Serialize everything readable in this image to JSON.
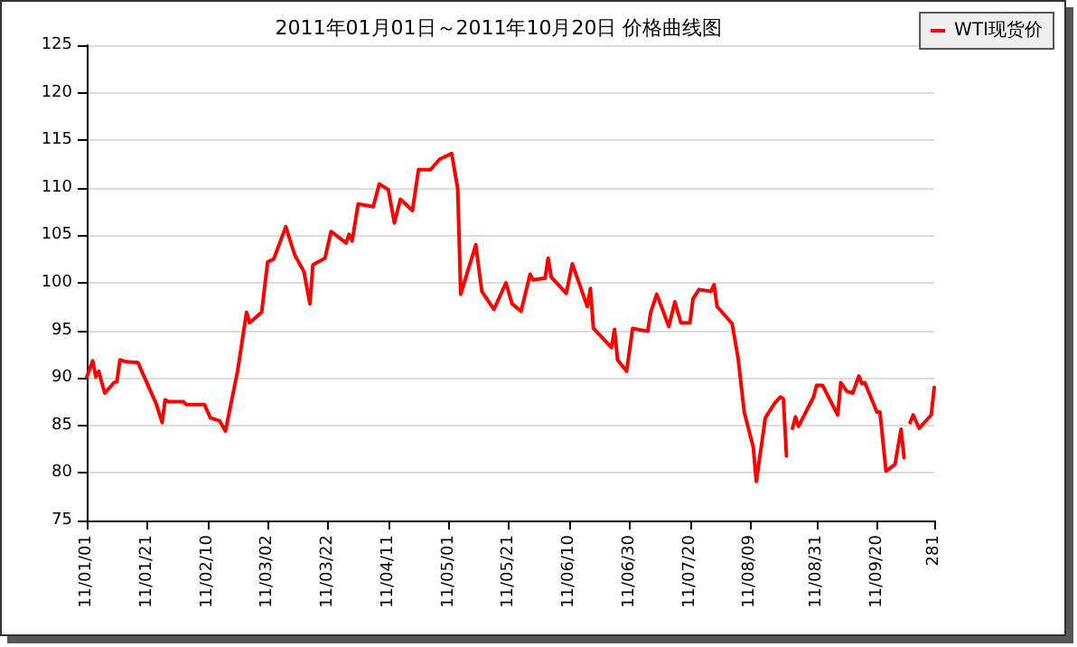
{
  "chart_data": {
    "type": "line",
    "title": "2011年01月01日～2011年10月20日 价格曲线图",
    "x": [
      "2011-01-01",
      "2011-01-03",
      "2011-01-04",
      "2011-01-05",
      "2011-01-06",
      "2011-01-07",
      "2011-01-10",
      "2011-01-11",
      "2011-01-12",
      "2011-01-14",
      "2011-01-18",
      "2011-01-24",
      "2011-01-26",
      "2011-01-27",
      "2011-01-28",
      "2011-02-02",
      "2011-02-03",
      "2011-02-09",
      "2011-02-11",
      "2011-02-14",
      "2011-02-16",
      "2011-02-20",
      "2011-02-23",
      "2011-02-24",
      "2011-02-28",
      "2011-03-02",
      "2011-03-04",
      "2011-03-08",
      "2011-03-11",
      "2011-03-14",
      "2011-03-16",
      "2011-03-17",
      "2011-03-21",
      "2011-03-23",
      "2011-03-28",
      "2011-03-29",
      "2011-03-30",
      "2011-04-01",
      "2011-04-06",
      "2011-04-08",
      "2011-04-11",
      "2011-04-13",
      "2011-04-15",
      "2011-04-19",
      "2011-04-21",
      "2011-04-25",
      "2011-04-28",
      "2011-05-02",
      "2011-05-04",
      "2011-05-05",
      "2011-05-10",
      "2011-05-12",
      "2011-05-16",
      "2011-05-20",
      "2011-05-22",
      "2011-05-25",
      "2011-05-28",
      "2011-05-29",
      "2011-06-02",
      "2011-06-03",
      "2011-06-04",
      "2011-06-09",
      "2011-06-11",
      "2011-06-16",
      "2011-06-17",
      "2011-06-18",
      "2011-06-24",
      "2011-06-25",
      "2011-06-26",
      "2011-06-29",
      "2011-07-01",
      "2011-07-06",
      "2011-07-07",
      "2011-07-09",
      "2011-07-13",
      "2011-07-15",
      "2011-07-17",
      "2011-07-20",
      "2011-07-21",
      "2011-07-23",
      "2011-07-27",
      "2011-07-28",
      "2011-07-29",
      "2011-08-03",
      "2011-08-05",
      "2011-08-07",
      "2011-08-10",
      "2011-08-11",
      "2011-08-14",
      "2011-08-17",
      "2011-08-19",
      "2011-08-20",
      "2011-08-21",
      "2011-08-22",
      "2011-08-23",
      "2011-08-24",
      "2011-08-25",
      "2011-08-30",
      "2011-08-31",
      "2011-09-02",
      "2011-09-07",
      "2011-09-08",
      "2011-09-10",
      "2011-09-12",
      "2011-09-14",
      "2011-09-15",
      "2011-09-16",
      "2011-09-20",
      "2011-09-21",
      "2011-09-23",
      "2011-09-26",
      "2011-09-28",
      "2011-09-29",
      "2011-09-30",
      "2011-10-01",
      "2011-10-02",
      "2011-10-04",
      "2011-10-08",
      "2011-10-09"
    ],
    "series": [
      {
        "name": "WTI现货价",
        "color": "#ff0000",
        "values": [
          90.1,
          91.8,
          90.1,
          90.7,
          89.5,
          88.4,
          89.5,
          89.6,
          91.9,
          91.7,
          91.6,
          87.3,
          85.3,
          87.7,
          87.5,
          87.5,
          87.2,
          87.2,
          85.8,
          85.5,
          84.4,
          90.7,
          96.9,
          95.8,
          96.9,
          102.2,
          102.5,
          105.9,
          102.9,
          101.2,
          97.8,
          101.9,
          102.6,
          105.4,
          104.2,
          105.1,
          104.4,
          108.3,
          108.0,
          110.4,
          109.8,
          106.3,
          108.8,
          107.6,
          111.9,
          111.9,
          113.0,
          113.6,
          109.9,
          98.8,
          104.0,
          99.1,
          97.2,
          100.0,
          97.8,
          97.0,
          100.9,
          100.3,
          100.5,
          102.6,
          100.6,
          98.9,
          102.0,
          97.5,
          99.4,
          95.2,
          93.2,
          95.1,
          91.9,
          90.7,
          95.2,
          94.9,
          96.9,
          98.8,
          95.4,
          98.0,
          95.8,
          95.8,
          98.3,
          99.3,
          99.1,
          99.8,
          97.5,
          95.7,
          92.0,
          86.4,
          82.7,
          79.1,
          85.8,
          87.3,
          88.0,
          87.8,
          81.8,
          null,
          84.7,
          85.9,
          84.9,
          88.0,
          89.2,
          89.2,
          86.1,
          89.5,
          88.6,
          88.4,
          90.2,
          89.4,
          89.5,
          86.4,
          86.4,
          80.2,
          80.9,
          84.6,
          81.6,
          null,
          85.3,
          86.1,
          84.7,
          86.1,
          89.0
        ]
      }
    ],
    "xlim": [
      "2011-01-01",
      "2011-10-09"
    ],
    "xticks": [
      {
        "value": "2011-01-01",
        "label": "11/01/01"
      },
      {
        "value": "2011-01-21",
        "label": "11/01/21"
      },
      {
        "value": "2011-02-10",
        "label": "11/02/10"
      },
      {
        "value": "2011-03-02",
        "label": "11/03/02"
      },
      {
        "value": "2011-03-22",
        "label": "11/03/22"
      },
      {
        "value": "2011-04-11",
        "label": "11/04/11"
      },
      {
        "value": "2011-05-01",
        "label": "11/05/01"
      },
      {
        "value": "2011-05-21",
        "label": "11/05/21"
      },
      {
        "value": "2011-06-10",
        "label": "11/06/10"
      },
      {
        "value": "2011-06-30",
        "label": "11/06/30"
      },
      {
        "value": "2011-07-20",
        "label": "11/07/20"
      },
      {
        "value": "2011-08-09",
        "label": "11/08/09"
      },
      {
        "value": "2011-08-31",
        "label": "11/08/31"
      },
      {
        "value": "2011-09-20",
        "label": "11/09/20"
      },
      {
        "value": "2011-10-09",
        "label": "281"
      }
    ],
    "ylim": [
      75,
      125
    ],
    "yticks": [
      75,
      80,
      85,
      90,
      95,
      100,
      105,
      110,
      115,
      120,
      125
    ],
    "grid": "y",
    "legend": "top right",
    "marker": "none",
    "line_style": "solid"
  }
}
